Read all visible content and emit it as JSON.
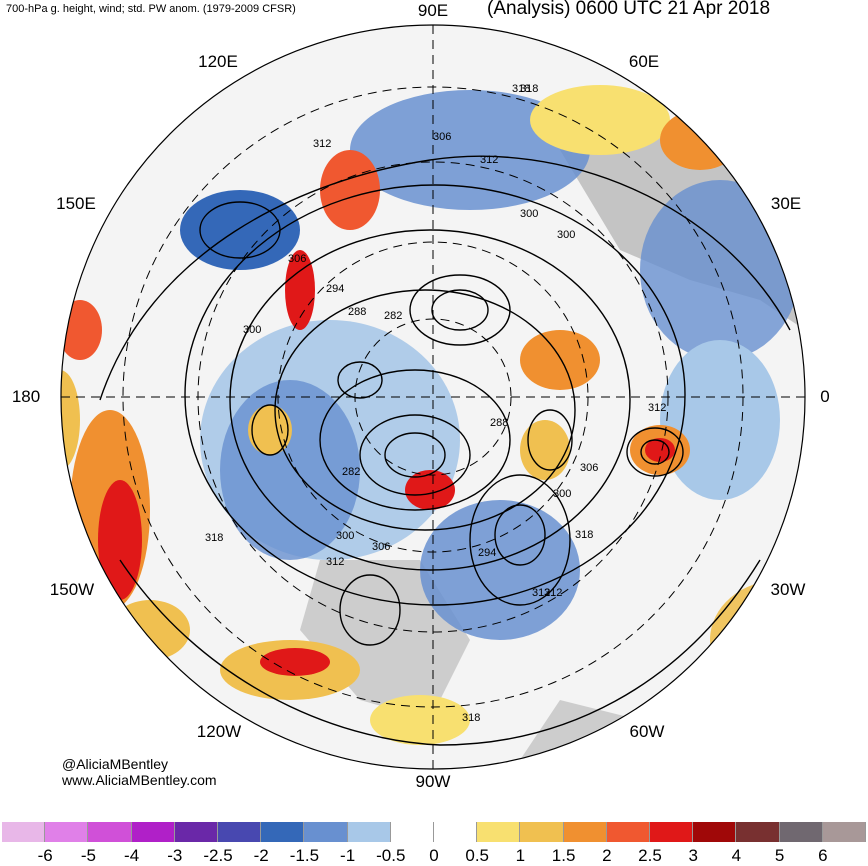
{
  "header": {
    "left_title": "700-hPa g. height, wind; std. PW anom. (1979-2009 CFSR)",
    "right_title": "(Analysis) 0600 UTC 21 Apr 2018"
  },
  "longitude_labels": [
    "90E",
    "60E",
    "30E",
    "0",
    "30W",
    "60W",
    "90W",
    "120W",
    "150W",
    "180",
    "150E",
    "120E"
  ],
  "contour_labels": [
    "318",
    "312",
    "306",
    "312",
    "300",
    "306",
    "300",
    "294",
    "288",
    "282",
    "300",
    "288",
    "282",
    "306",
    "312",
    "300",
    "318",
    "318",
    "312",
    "306",
    "300",
    "294",
    "312",
    "318",
    "312",
    "318"
  ],
  "credits": [
    "@AliciaMBentley",
    "www.AliciaMBentley.com"
  ],
  "colorbar": {
    "colors": [
      "#e8b7e8",
      "#e080e8",
      "#d050d8",
      "#b020c8",
      "#6a28a8",
      "#4848b0",
      "#3468b8",
      "#6890d0",
      "#a8c8e8",
      "#ffffff",
      "#ffffff",
      "#f8e070",
      "#f0c050",
      "#f09030",
      "#f05830",
      "#e01818",
      "#a00808",
      "#783030",
      "#706870",
      "#a89898"
    ],
    "labels": [
      "-6",
      "-5",
      "-4",
      "-3",
      "-2.5",
      "-2",
      "-1.5",
      "-1",
      "-0.5",
      "0",
      "0.5",
      "1",
      "1.5",
      "2",
      "2.5",
      "3",
      "4",
      "5",
      "6"
    ]
  }
}
